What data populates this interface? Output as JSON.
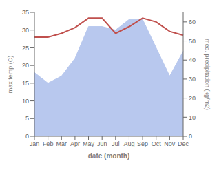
{
  "chart_data": {
    "type": "line",
    "categories": [
      "Jan",
      "Feb",
      "Mar",
      "Apr",
      "May",
      "Jun",
      "Jul",
      "Aug",
      "Sep",
      "Oct",
      "Nov",
      "Dec"
    ],
    "xlabel": "date (month)",
    "ylabel": "max temp (C)",
    "y2label": "med. precipitation (kg/m2)",
    "ylim": [
      0,
      35
    ],
    "yticks": [
      0,
      5,
      10,
      15,
      20,
      25,
      30,
      35
    ],
    "y2lim": [
      0,
      65
    ],
    "y2ticks": [
      0,
      10,
      20,
      30,
      40,
      50,
      60
    ],
    "grid": false,
    "series": [
      {
        "type": "area",
        "color": "#b8c8ee",
        "values": [
          18.0,
          15.0,
          17.0,
          22.0,
          31.0,
          31.0,
          30.0,
          33.0,
          33.0,
          25.0,
          17.0,
          24.0
        ]
      },
      {
        "type": "line",
        "axis": "y2",
        "color": "#c0504d",
        "values": [
          52.0,
          52.0,
          54.0,
          57.0,
          62.0,
          62.0,
          54.0,
          57.5,
          62.0,
          60.0,
          55.0,
          53.0
        ]
      }
    ]
  }
}
